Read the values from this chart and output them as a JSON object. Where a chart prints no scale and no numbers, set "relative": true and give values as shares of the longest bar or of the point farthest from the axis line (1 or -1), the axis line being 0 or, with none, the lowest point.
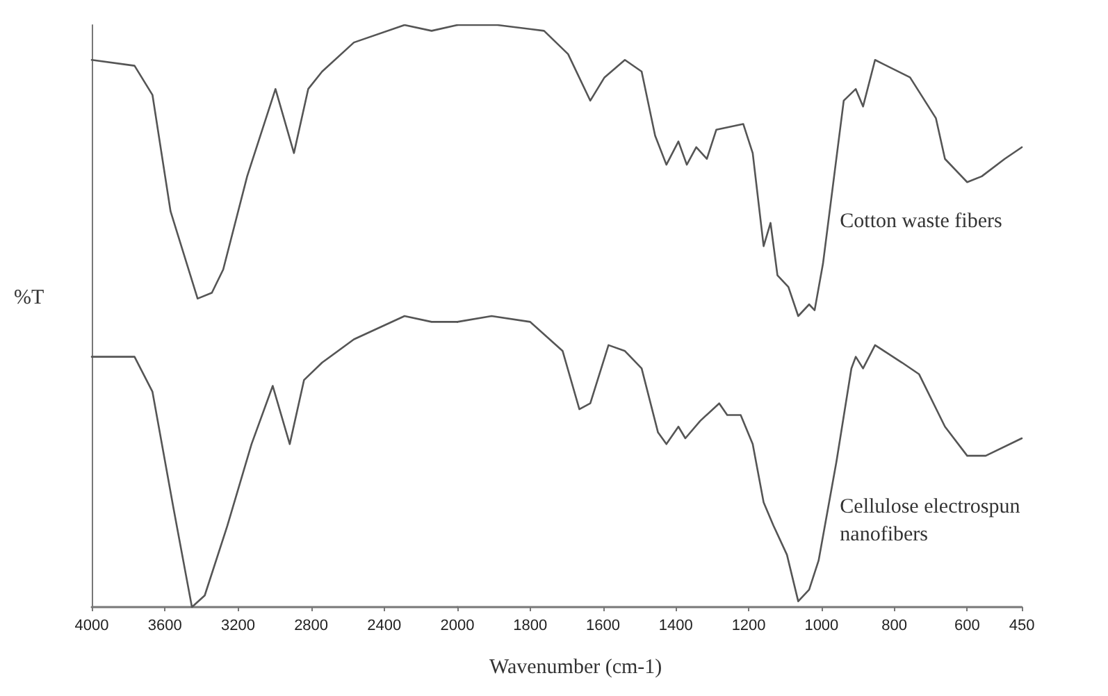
{
  "chart_data": [
    {
      "type": "line",
      "xlabel": "Wavenumber (cm-1)",
      "ylabel": "%T",
      "relative": true,
      "xlim": [
        4000,
        2000
      ],
      "xticks": [
        4000,
        3600,
        3200,
        2800,
        2400,
        2000
      ],
      "marker": "none",
      "line_style": "solid",
      "series": [
        {
          "color": "#555555",
          "x": [
            4000,
            3766,
            3668,
            3569,
            3421,
            3343,
            3281,
            3150,
            2995,
            2894,
            2816,
            2740,
            2566,
            2289,
            2141,
            2000
          ],
          "values": [
            0.94,
            0.93,
            0.88,
            0.68,
            0.53,
            0.54,
            0.58,
            0.74,
            0.89,
            0.78,
            0.89,
            0.92,
            0.97,
            1.0,
            0.99,
            1.0
          ]
        },
        {
          "color": "#555555",
          "x": [
            4000,
            3766,
            3668,
            3553,
            3452,
            3382,
            3258,
            3126,
            3010,
            2917,
            2839,
            2740,
            2566,
            2289,
            2141,
            2000
          ],
          "values": [
            0.43,
            0.43,
            0.37,
            0.17,
            0.0,
            0.02,
            0.14,
            0.28,
            0.38,
            0.28,
            0.39,
            0.42,
            0.46,
            0.5,
            0.49,
            0.49
          ]
        }
      ]
    },
    {
      "type": "line",
      "relative": true,
      "xlim": [
        2000,
        450
      ],
      "xticks": [
        1800,
        1600,
        1400,
        1200,
        1000,
        800,
        600,
        450
      ],
      "tick_labels": "x",
      "marker": "none",
      "line_style": "solid",
      "series": [
        {
          "name": "Cotton waste fibers",
          "color": "#555555",
          "x": [
            2000,
            1890,
            1762,
            1696,
            1635,
            1596,
            1540,
            1494,
            1457,
            1426,
            1393,
            1370,
            1344,
            1315,
            1289,
            1215,
            1189,
            1159,
            1140,
            1121,
            1091,
            1064,
            1034,
            1019,
            996,
            939,
            906,
            886,
            853,
            757,
            686,
            661,
            600,
            560,
            497,
            450
          ],
          "values": [
            1.0,
            1.0,
            0.99,
            0.95,
            0.87,
            0.91,
            0.94,
            0.92,
            0.81,
            0.76,
            0.8,
            0.76,
            0.79,
            0.77,
            0.82,
            0.83,
            0.78,
            0.62,
            0.66,
            0.57,
            0.55,
            0.5,
            0.52,
            0.51,
            0.59,
            0.87,
            0.89,
            0.86,
            0.94,
            0.91,
            0.84,
            0.77,
            0.73,
            0.74,
            0.77,
            0.79
          ]
        },
        {
          "name": "Cellulose electrospun nanofibers",
          "color": "#555555",
          "x": [
            2000,
            1906,
            1800,
            1711,
            1665,
            1635,
            1585,
            1540,
            1494,
            1449,
            1426,
            1393,
            1374,
            1333,
            1281,
            1259,
            1222,
            1189,
            1159,
            1132,
            1095,
            1064,
            1034,
            1008,
            959,
            918,
            906,
            886,
            853,
            779,
            732,
            661,
            600,
            549,
            450
          ],
          "values": [
            0.49,
            0.5,
            0.49,
            0.44,
            0.34,
            0.35,
            0.45,
            0.44,
            0.41,
            0.3,
            0.28,
            0.31,
            0.29,
            0.32,
            0.35,
            0.33,
            0.33,
            0.28,
            0.18,
            0.14,
            0.09,
            0.01,
            0.03,
            0.08,
            0.25,
            0.41,
            0.43,
            0.41,
            0.45,
            0.42,
            0.4,
            0.31,
            0.26,
            0.26,
            0.29
          ]
        }
      ]
    }
  ]
}
